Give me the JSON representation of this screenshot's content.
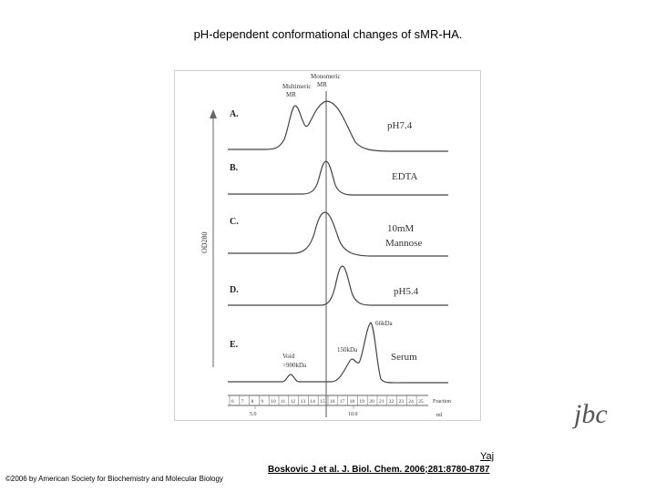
{
  "page": {
    "title": "pH-dependent conformational changes of sMR-HA.",
    "author": "Yaj",
    "citation": "Boskovic J et al. J. Biol. Chem. 2006;281:8780-8787",
    "copyright": "©2006 by American Society for Biochemistry and Molecular Biology",
    "logo_text": "jbc"
  },
  "figure": {
    "peak_labels": {
      "multimeric": [
        "Multimeric",
        "MR"
      ],
      "monomeric": [
        "Monomeric",
        "MR"
      ]
    },
    "y_axis_label": "OD280",
    "panels": [
      {
        "letter": "A.",
        "condition": [
          "pH7.4"
        ]
      },
      {
        "letter": "B.",
        "condition": [
          "EDTA"
        ]
      },
      {
        "letter": "C.",
        "condition": [
          "10mM",
          "Mannose"
        ]
      },
      {
        "letter": "D.",
        "condition": [
          "pH5.4"
        ]
      },
      {
        "letter": "E.",
        "condition": [
          "Serum"
        ]
      }
    ],
    "serum_markers": {
      "m66": "66kDa",
      "m150": "150kDa",
      "void": [
        "Void",
        ">900kDa"
      ]
    },
    "fraction_ticks": [
      "6",
      "7",
      "8",
      "9",
      "10",
      "11",
      "12",
      "13",
      "14",
      "15",
      "16",
      "17",
      "18",
      "19",
      "20",
      "21",
      "22",
      "23",
      "24",
      "25"
    ],
    "fraction_label": "Fraction",
    "ml_ticks": [
      "5.0",
      "10.0"
    ],
    "ml_label": "ml"
  }
}
